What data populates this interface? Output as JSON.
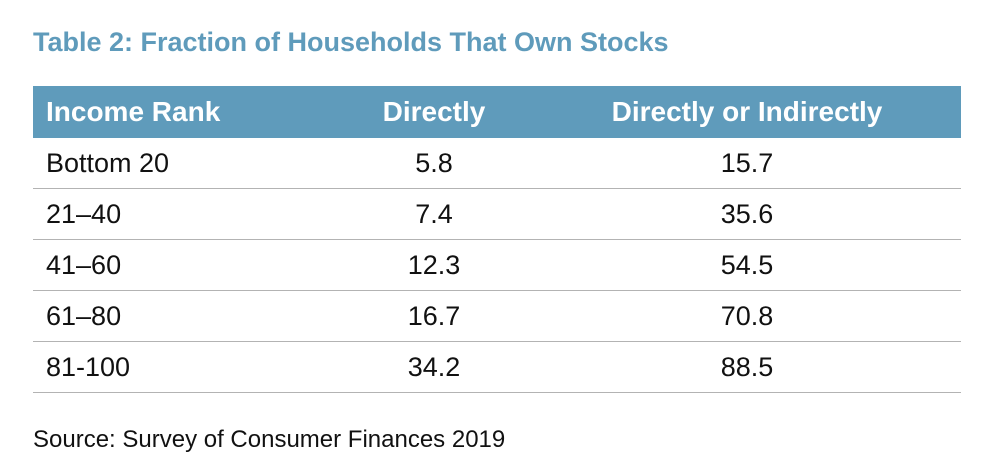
{
  "title": "Table 2: Fraction of Households That Own Stocks",
  "table": {
    "headers": [
      "Income Rank",
      "Directly",
      "Directly or Indirectly"
    ],
    "rows": [
      [
        "Bottom 20",
        "5.8",
        "15.7"
      ],
      [
        "21–40",
        "7.4",
        "35.6"
      ],
      [
        "41–60",
        "12.3",
        "54.5"
      ],
      [
        "61–80",
        "16.7",
        "70.8"
      ],
      [
        "81-100",
        "34.2",
        "88.5"
      ]
    ]
  },
  "source": "Source: Survey of Consumer Finances 2019",
  "colors": {
    "accent": "#5f9bbb",
    "header_text": "#ffffff",
    "body_text": "#111111",
    "divider": "#b3b3b3"
  }
}
